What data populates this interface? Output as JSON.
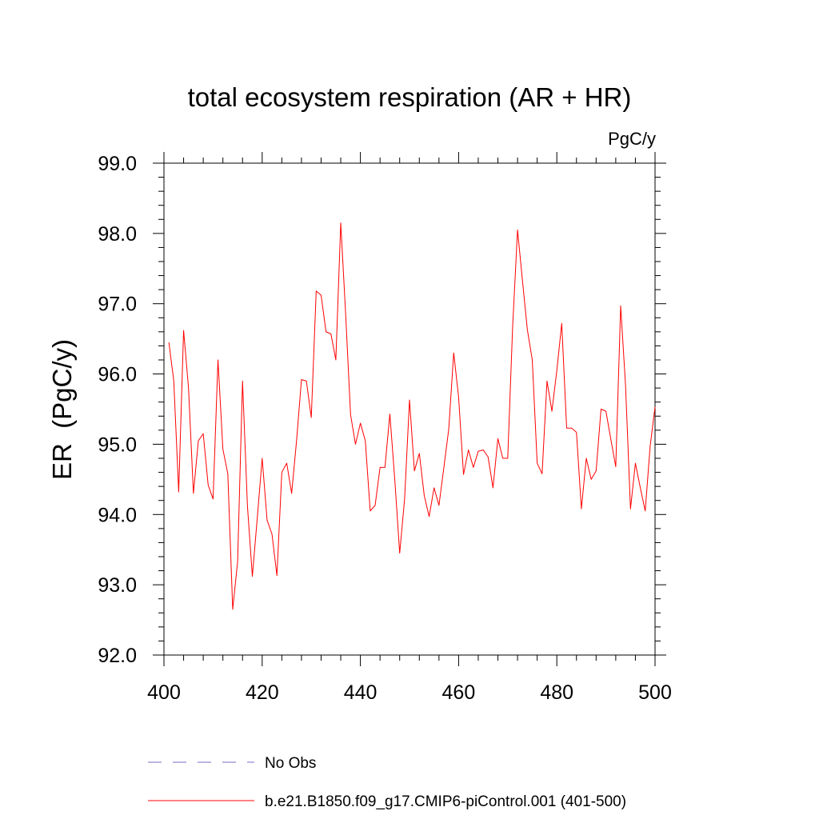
{
  "chart_data": {
    "type": "line",
    "title": "total ecosystem respiration (AR + HR)",
    "units": "PgC/y",
    "ylabel": "ER  (PgC/y)",
    "xlabel": "",
    "xlim": [
      400,
      500
    ],
    "ylim": [
      92.0,
      99.0
    ],
    "x_ticks": [
      400,
      420,
      440,
      460,
      480,
      500
    ],
    "x_tick_labels": [
      "400",
      "420",
      "440",
      "460",
      "480",
      "500"
    ],
    "y_ticks": [
      92.0,
      93.0,
      94.0,
      95.0,
      96.0,
      97.0,
      98.0,
      99.0
    ],
    "y_tick_labels": [
      "92.0",
      "93.0",
      "94.0",
      "95.0",
      "96.0",
      "97.0",
      "98.0",
      "99.0"
    ],
    "series": [
      {
        "name": "b.e21.B1850.f09_g17.CMIP6-piControl.001 (401-500)",
        "color": "#ff0000",
        "style": "solid",
        "x": [
          401,
          402,
          403,
          404,
          405,
          406,
          407,
          408,
          409,
          410,
          411,
          412,
          413,
          414,
          415,
          416,
          417,
          418,
          419,
          420,
          421,
          422,
          423,
          424,
          425,
          426,
          427,
          428,
          429,
          430,
          431,
          432,
          433,
          434,
          435,
          436,
          437,
          438,
          439,
          440,
          441,
          442,
          443,
          444,
          445,
          446,
          447,
          448,
          449,
          450,
          451,
          452,
          453,
          454,
          455,
          456,
          457,
          458,
          459,
          460,
          461,
          462,
          463,
          464,
          465,
          466,
          467,
          468,
          469,
          470,
          471,
          472,
          473,
          474,
          475,
          476,
          477,
          478,
          479,
          480,
          481,
          482,
          483,
          484,
          485,
          486,
          487,
          488,
          489,
          490,
          491,
          492,
          493,
          494,
          495,
          496,
          497,
          498,
          499,
          500
        ],
        "values": [
          96.45,
          95.9,
          94.32,
          96.62,
          95.8,
          94.3,
          95.05,
          95.15,
          94.42,
          94.22,
          96.2,
          94.93,
          94.58,
          92.65,
          93.33,
          95.9,
          94.12,
          93.12,
          93.95,
          94.8,
          93.92,
          93.72,
          93.13,
          94.6,
          94.73,
          94.3,
          95.05,
          95.92,
          95.9,
          95.38,
          97.18,
          97.12,
          96.6,
          96.57,
          96.2,
          98.15,
          96.85,
          95.42,
          95.0,
          95.3,
          95.05,
          94.05,
          94.13,
          94.67,
          94.67,
          95.43,
          94.5,
          93.45,
          94.22,
          95.63,
          94.62,
          94.87,
          94.27,
          93.97,
          94.38,
          94.13,
          94.67,
          95.22,
          96.3,
          95.67,
          94.57,
          94.92,
          94.67,
          94.9,
          94.92,
          94.82,
          94.38,
          95.08,
          94.8,
          94.8,
          96.67,
          98.05,
          97.33,
          96.63,
          96.2,
          94.73,
          94.58,
          95.9,
          95.47,
          96.05,
          96.72,
          95.23,
          95.23,
          95.17,
          94.08,
          94.8,
          94.5,
          94.62,
          95.5,
          95.47,
          95.07,
          94.68,
          96.97,
          95.83,
          94.08,
          94.73,
          94.38,
          94.05,
          94.97,
          95.53
        ]
      }
    ],
    "legend": [
      {
        "label": "No Obs",
        "color": "#7b68c8",
        "style": "dashed"
      },
      {
        "label": "b.e21.B1850.f09_g17.CMIP6-piControl.001 (401-500)",
        "color": "#ff0000",
        "style": "solid"
      }
    ],
    "legend_position": "bottom"
  }
}
